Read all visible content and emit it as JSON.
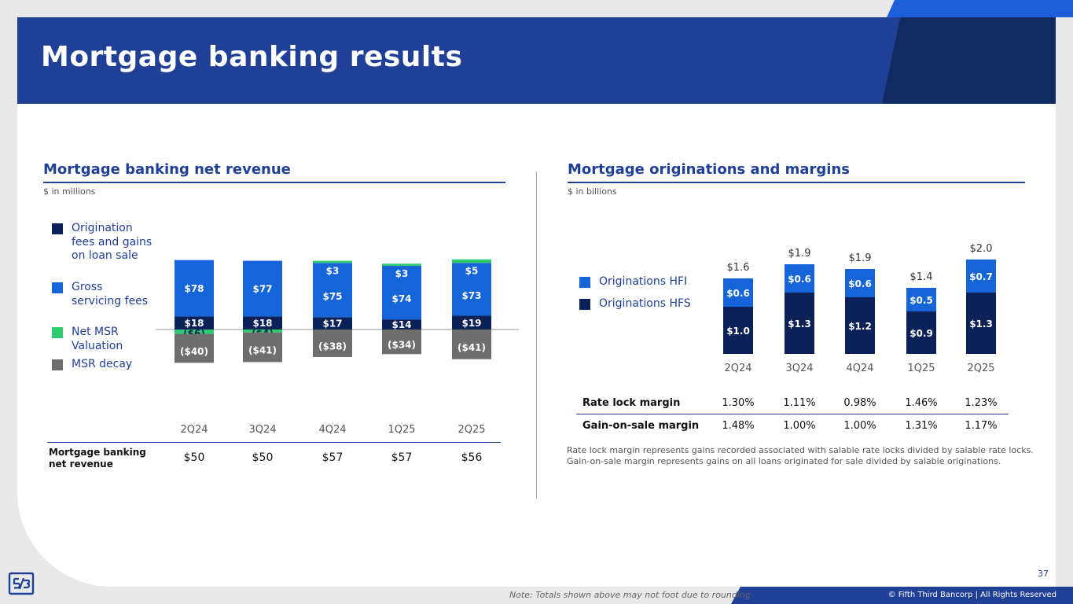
{
  "title": "Mortgage banking results",
  "colors": {
    "navy": "#0c2157",
    "blue": "#1565d8",
    "green": "#2ecc71",
    "gray": "#6e6e6e",
    "brand": "#1f4096"
  },
  "left": {
    "section_title": "Mortgage banking net revenue",
    "units": "$ in millions",
    "legend": [
      {
        "label": "Origination fees and gains on loan sale",
        "color": "#0c2157"
      },
      {
        "label": "Gross servicing fees",
        "color": "#1565d8"
      },
      {
        "label": "Net MSR Valuation",
        "color": "#2ecc71"
      },
      {
        "label": "MSR decay",
        "color": "#6e6e6e"
      }
    ],
    "table_label": "Mortgage banking net revenue",
    "net_revenue": [
      "$50",
      "$50",
      "$57",
      "$57",
      "$56"
    ]
  },
  "right": {
    "section_title": "Mortgage originations and margins",
    "units": "$ in billions",
    "legend": [
      {
        "label": "Originations HFI",
        "color": "#1565d8"
      },
      {
        "label": "Originations HFS",
        "color": "#0c2157"
      }
    ],
    "margins": [
      {
        "label": "Rate lock margin",
        "values": [
          "1.30%",
          "1.11%",
          "0.98%",
          "1.46%",
          "1.23%"
        ]
      },
      {
        "label": "Gain-on-sale margin",
        "values": [
          "1.48%",
          "1.00%",
          "1.00%",
          "1.31%",
          "1.17%"
        ]
      }
    ],
    "note_1": "Rate lock margin represents gains recorded associated with salable rate locks divided by salable rate locks.",
    "note_2": "Gain-on-sale margin represents gains on all loans originated for sale divided by salable originations."
  },
  "chart_data": [
    {
      "type": "bar",
      "stacked": true,
      "title": "Mortgage banking net revenue",
      "ylabel": "$ in millions",
      "categories": [
        "2Q24",
        "3Q24",
        "4Q24",
        "1Q25",
        "2Q25"
      ],
      "series": [
        {
          "name": "Origination fees and gains on loan sale",
          "values": [
            18,
            18,
            17,
            14,
            19
          ],
          "labels": [
            "$18",
            "$18",
            "$17",
            "$14",
            "$19"
          ]
        },
        {
          "name": "Gross servicing fees",
          "values": [
            78,
            77,
            75,
            74,
            73
          ],
          "labels": [
            "$78",
            "$77",
            "$75",
            "$74",
            "$73"
          ]
        },
        {
          "name": "Net MSR Valuation",
          "values": [
            -6,
            -4,
            3,
            3,
            5
          ],
          "labels": [
            "($6)",
            "($4)",
            "$3",
            "$3",
            "$5"
          ]
        },
        {
          "name": "MSR decay",
          "values": [
            -40,
            -41,
            -38,
            -34,
            -41
          ],
          "labels": [
            "($40)",
            "($41)",
            "($38)",
            "($34)",
            "($41)"
          ]
        }
      ]
    },
    {
      "type": "bar",
      "stacked": true,
      "title": "Mortgage originations and margins",
      "ylabel": "$ in billions",
      "categories": [
        "2Q24",
        "3Q24",
        "4Q24",
        "1Q25",
        "2Q25"
      ],
      "series": [
        {
          "name": "Originations HFS",
          "values": [
            1.0,
            1.3,
            1.2,
            0.9,
            1.3
          ],
          "labels": [
            "$1.0",
            "$1.3",
            "$1.2",
            "$0.9",
            "$1.3"
          ]
        },
        {
          "name": "Originations HFI",
          "values": [
            0.6,
            0.6,
            0.6,
            0.5,
            0.7
          ],
          "labels": [
            "$0.6",
            "$0.6",
            "$0.6",
            "$0.5",
            "$0.7"
          ]
        }
      ],
      "totals": [
        "$1.6",
        "$1.9",
        "$1.9",
        "$1.4",
        "$2.0"
      ]
    }
  ],
  "footer": {
    "note": "Note: Totals shown above may not foot due to rounding",
    "copyright": "© Fifth Third Bancorp | All Rights Reserved",
    "page": "37"
  }
}
